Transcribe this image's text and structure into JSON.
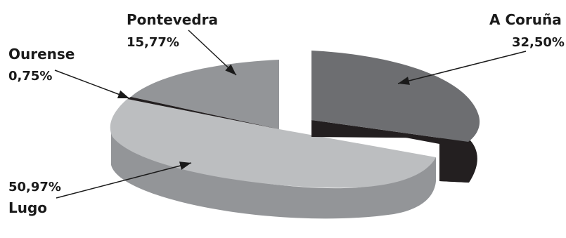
{
  "chart_data": {
    "type": "pie",
    "style": "3d-exploded",
    "slices": [
      {
        "name": "A Coruña",
        "value": 32.5,
        "label": "32,50%",
        "color": "#6d6e71",
        "side_color": "#231f20"
      },
      {
        "name": "Lugo",
        "value": 50.97,
        "label": "50,97%",
        "color": "#bcbec0",
        "side_color": "#939598"
      },
      {
        "name": "Ourense",
        "value": 0.75,
        "label": "0,75%",
        "color": "#231f20",
        "side_color": "#231f20"
      },
      {
        "name": "Pontevedra",
        "value": 15.77,
        "label": "15,77%",
        "color": "#939598",
        "side_color": "#6d6e71"
      }
    ]
  }
}
